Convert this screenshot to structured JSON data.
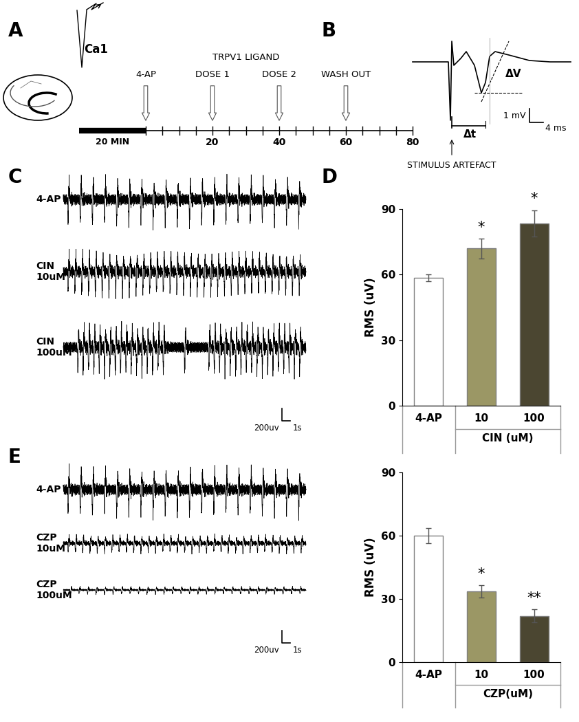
{
  "chart_data": [
    {
      "type": "bar",
      "panel": "D",
      "categories": [
        "4-AP",
        "10",
        "100"
      ],
      "values": [
        58.5,
        72,
        83.5
      ],
      "errors": [
        1.5,
        4.5,
        6
      ],
      "colors": [
        "#ffffff",
        "#9b9765",
        "#4b4631"
      ],
      "significance": [
        null,
        "*",
        "*"
      ],
      "ylim": [
        0,
        90
      ],
      "yticks": [
        0,
        30,
        60,
        90
      ],
      "y_label": "RMS (uV)",
      "x_label": "CIN (uM)"
    },
    {
      "type": "bar",
      "panel": "E",
      "categories": [
        "4-AP",
        "10",
        "100"
      ],
      "values": [
        60,
        33.5,
        22
      ],
      "errors": [
        3.5,
        3,
        3
      ],
      "colors": [
        "#ffffff",
        "#9b9765",
        "#4b4631"
      ],
      "significance": [
        null,
        "*",
        "**"
      ],
      "ylim": [
        0,
        90
      ],
      "yticks": [
        0,
        30,
        60,
        90
      ],
      "y_label": "RMS (uV)",
      "x_label": "CZP(uM)"
    }
  ],
  "panel_a": {
    "panel": "A",
    "recording_site": "Ca1",
    "baseline_label": "20 MIN",
    "baseline_duration": 20,
    "time_end": 80,
    "tick_step": 5,
    "time_ticks": [
      20,
      40,
      60,
      80
    ],
    "events": [
      {
        "label": "4-AP",
        "time": 0
      },
      {
        "label": "DOSE 1",
        "time": 20
      },
      {
        "label": "DOSE 2",
        "time": 40
      },
      {
        "label": "WASH OUT",
        "time": 60
      }
    ],
    "event_group_label": "TRPV1 LIGAND"
  },
  "panel_b": {
    "panel": "B",
    "amplitude": "ΔV",
    "latency": "Δt",
    "stimulus": "STIMULUS ARTEFACT",
    "scale_voltage": "1 mV",
    "scale_time": "4 ms"
  },
  "panel_c": {
    "panel": "C",
    "traces": [
      "4-AP",
      "CIN\n10uM",
      "CIN\n100uM"
    ],
    "scale_voltage": "200uv",
    "scale_time": "1s"
  },
  "panel_e": {
    "panel": "E",
    "traces": [
      "4-AP",
      "CZP\n10uM",
      "CZP\n100uM"
    ],
    "scale_voltage": "200uv",
    "scale_time": "1s"
  }
}
